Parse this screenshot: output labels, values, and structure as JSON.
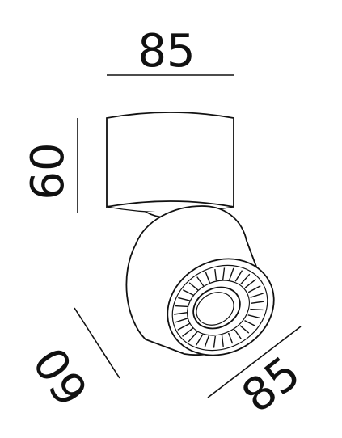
{
  "dimensions": {
    "top_width": "85",
    "height": "60",
    "head_depth": "60",
    "head_diameter": "85"
  },
  "colors": {
    "line": "#111111",
    "background": "#ffffff"
  }
}
